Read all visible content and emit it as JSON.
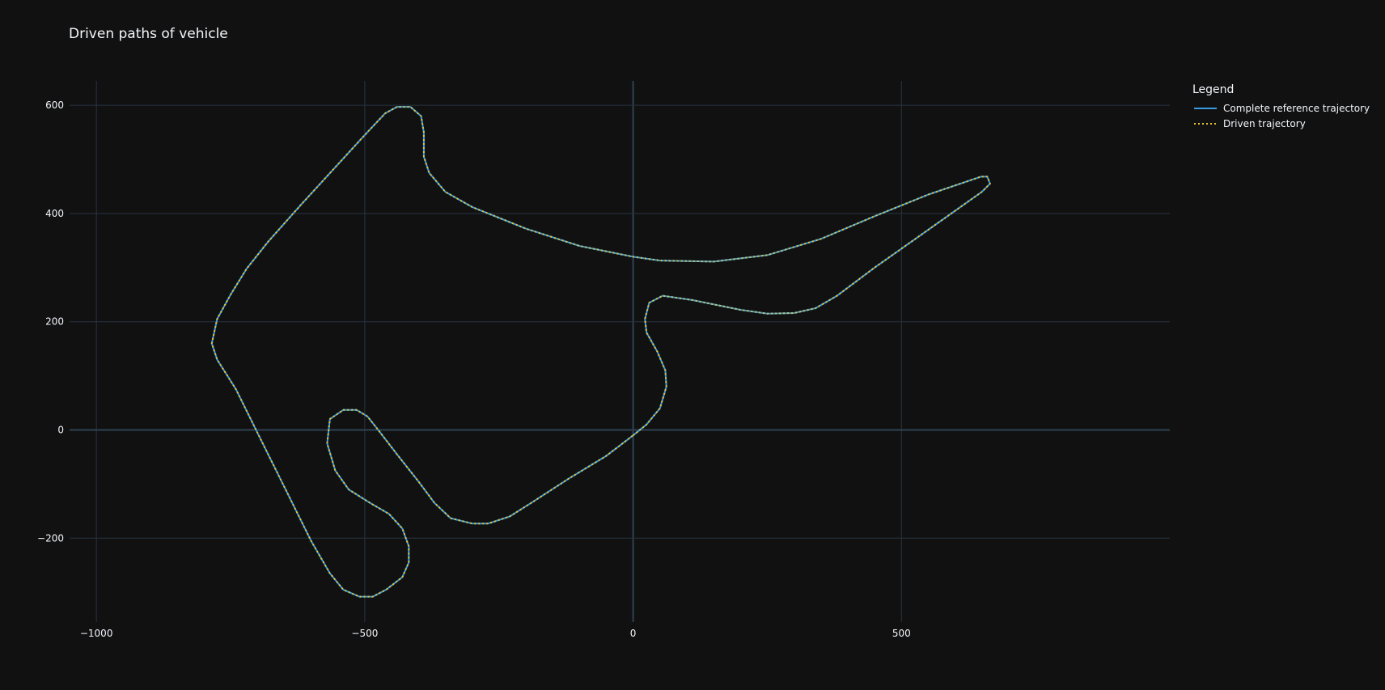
{
  "chart_data": {
    "type": "line",
    "title": "Driven paths of vehicle",
    "xlabel": "",
    "ylabel": "",
    "xlim": [
      -1050,
      1000
    ],
    "ylim": [
      -355,
      645
    ],
    "x_ticks": [
      -1000,
      -500,
      0,
      500
    ],
    "x_tick_labels": [
      "−1000",
      "−500",
      "0",
      "500"
    ],
    "y_ticks": [
      -200,
      0,
      200,
      400,
      600
    ],
    "y_tick_labels": [
      "−200",
      "0",
      "200",
      "400",
      "600"
    ],
    "grid": true,
    "legend": {
      "title": "Legend",
      "placement": "right"
    },
    "series": [
      {
        "name": "Complete reference trajectory",
        "style": "solid",
        "color": "#3a9ae0"
      },
      {
        "name": "Driven trajectory",
        "style": "dotted",
        "color": "#e8c431"
      }
    ],
    "path": [
      [
        0,
        -10
      ],
      [
        25,
        10
      ],
      [
        50,
        40
      ],
      [
        62,
        80
      ],
      [
        60,
        110
      ],
      [
        45,
        145
      ],
      [
        25,
        180
      ],
      [
        22,
        205
      ],
      [
        30,
        235
      ],
      [
        55,
        248
      ],
      [
        110,
        240
      ],
      [
        200,
        222
      ],
      [
        250,
        215
      ],
      [
        300,
        216
      ],
      [
        340,
        225
      ],
      [
        380,
        248
      ],
      [
        450,
        300
      ],
      [
        550,
        370
      ],
      [
        650,
        440
      ],
      [
        665,
        455
      ],
      [
        660,
        468
      ],
      [
        648,
        468
      ],
      [
        550,
        435
      ],
      [
        450,
        395
      ],
      [
        350,
        353
      ],
      [
        250,
        323
      ],
      [
        150,
        311
      ],
      [
        50,
        313
      ],
      [
        0,
        320
      ],
      [
        -100,
        340
      ],
      [
        -200,
        372
      ],
      [
        -300,
        412
      ],
      [
        -350,
        440
      ],
      [
        -380,
        475
      ],
      [
        -390,
        505
      ],
      [
        -390,
        550
      ],
      [
        -395,
        580
      ],
      [
        -415,
        597
      ],
      [
        -440,
        597
      ],
      [
        -462,
        585
      ],
      [
        -500,
        545
      ],
      [
        -560,
        480
      ],
      [
        -620,
        415
      ],
      [
        -680,
        348
      ],
      [
        -720,
        298
      ],
      [
        -750,
        250
      ],
      [
        -775,
        205
      ],
      [
        -785,
        160
      ],
      [
        -775,
        130
      ],
      [
        -740,
        75
      ],
      [
        -700,
        -5
      ],
      [
        -650,
        -105
      ],
      [
        -600,
        -205
      ],
      [
        -565,
        -265
      ],
      [
        -540,
        -295
      ],
      [
        -510,
        -308
      ],
      [
        -485,
        -308
      ],
      [
        -460,
        -295
      ],
      [
        -430,
        -272
      ],
      [
        -418,
        -245
      ],
      [
        -418,
        -215
      ],
      [
        -430,
        -182
      ],
      [
        -455,
        -155
      ],
      [
        -490,
        -135
      ],
      [
        -530,
        -110
      ],
      [
        -555,
        -75
      ],
      [
        -570,
        -25
      ],
      [
        -565,
        20
      ],
      [
        -540,
        37
      ],
      [
        -515,
        37
      ],
      [
        -495,
        25
      ],
      [
        -475,
        0
      ],
      [
        -440,
        -45
      ],
      [
        -400,
        -95
      ],
      [
        -370,
        -135
      ],
      [
        -340,
        -163
      ],
      [
        -300,
        -173
      ],
      [
        -270,
        -173
      ],
      [
        -230,
        -160
      ],
      [
        -190,
        -135
      ],
      [
        -120,
        -90
      ],
      [
        -50,
        -48
      ],
      [
        0,
        -10
      ]
    ]
  }
}
